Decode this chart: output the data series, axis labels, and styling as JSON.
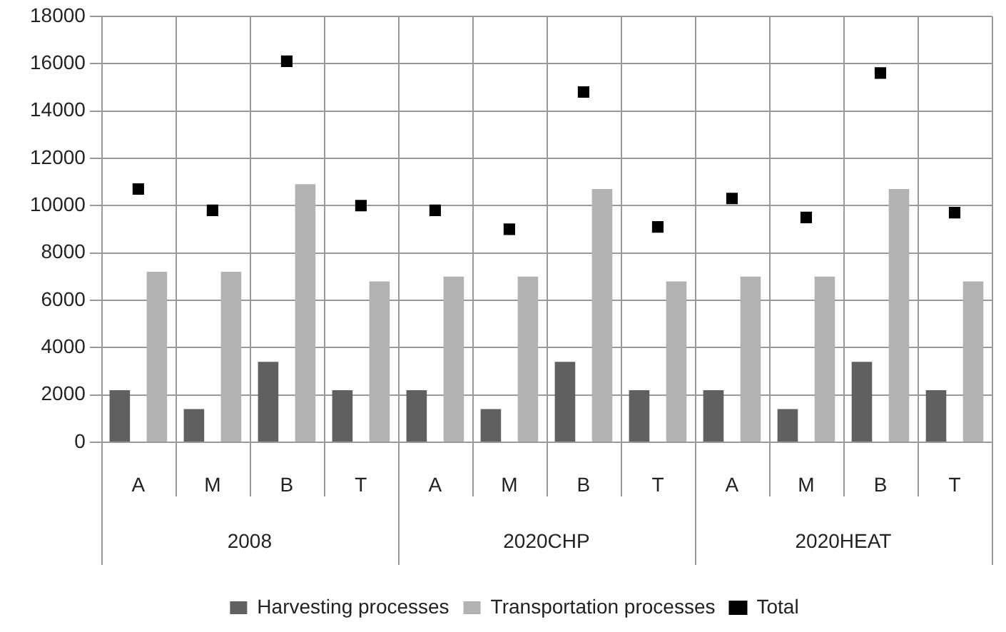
{
  "chart_data": {
    "type": "bar",
    "categories": [
      "A",
      "M",
      "B",
      "T",
      "A",
      "M",
      "B",
      "T",
      "A",
      "M",
      "B",
      "T"
    ],
    "series": [
      {
        "name": "Harvesting processes",
        "color": "#606060",
        "values": [
          2200,
          1400,
          3400,
          2200,
          2200,
          1400,
          3400,
          2200,
          2200,
          1400,
          3400,
          2200
        ]
      },
      {
        "name": "Transportation processes",
        "color": "#b2b2b2",
        "values": [
          7200,
          7200,
          10900,
          6800,
          7000,
          7000,
          10700,
          6800,
          7000,
          7000,
          10700,
          6800
        ]
      },
      {
        "name": "Total",
        "type": "scatter",
        "marker": "square",
        "color": "#000000",
        "values": [
          10700,
          9800,
          16100,
          10000,
          9800,
          9000,
          14800,
          9100,
          10300,
          9500,
          15600,
          9700
        ]
      }
    ],
    "annotations": [
      "2008",
      "2020CHP",
      "2020HEAT"
    ],
    "ylim": [
      0,
      18000
    ],
    "yticks": [
      0,
      2000,
      4000,
      6000,
      8000,
      10000,
      12000,
      14000,
      16000,
      18000
    ],
    "grid": true,
    "legend": "bottom"
  }
}
